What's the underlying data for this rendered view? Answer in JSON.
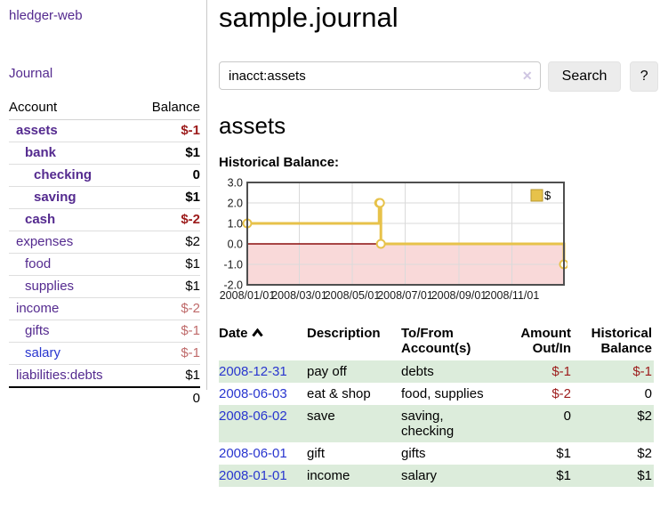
{
  "sidebar": {
    "app_title": "hledger-web",
    "nav_journal": "Journal",
    "accounts_table": {
      "headers": {
        "account": "Account",
        "balance": "Balance"
      },
      "rows": [
        {
          "name": "assets",
          "indent": 1,
          "bold": true,
          "balance": "$-1",
          "balance_style": "negative-strong",
          "link_style": "visited"
        },
        {
          "name": "bank",
          "indent": 2,
          "bold": true,
          "balance": "$1",
          "balance_style": "normal",
          "link_style": "visited"
        },
        {
          "name": "checking",
          "indent": 3,
          "bold": true,
          "balance": "0",
          "balance_style": "normal",
          "link_style": "visited"
        },
        {
          "name": "saving",
          "indent": 3,
          "bold": true,
          "balance": "$1",
          "balance_style": "normal",
          "link_style": "visited"
        },
        {
          "name": "cash",
          "indent": 2,
          "bold": true,
          "balance": "$-2",
          "balance_style": "negative-strong",
          "link_style": "visited"
        },
        {
          "name": "expenses",
          "indent": 1,
          "bold": false,
          "balance": "$2",
          "balance_style": "normal",
          "link_style": "visited"
        },
        {
          "name": "food",
          "indent": 2,
          "bold": false,
          "balance": "$1",
          "balance_style": "normal",
          "link_style": "visited"
        },
        {
          "name": "supplies",
          "indent": 2,
          "bold": false,
          "balance": "$1",
          "balance_style": "normal",
          "link_style": "visited"
        },
        {
          "name": "income",
          "indent": 1,
          "bold": false,
          "balance": "$-2",
          "balance_style": "negative-soft",
          "link_style": "visited"
        },
        {
          "name": "gifts",
          "indent": 2,
          "bold": false,
          "balance": "$-1",
          "balance_style": "negative-soft",
          "link_style": "visited"
        },
        {
          "name": "salary",
          "indent": 2,
          "bold": false,
          "balance": "$-1",
          "balance_style": "negative-soft",
          "link_style": "unvisited"
        },
        {
          "name": "liabilities:debts",
          "indent": 1,
          "bold": false,
          "balance": "$1",
          "balance_style": "normal",
          "link_style": "visited"
        }
      ],
      "total": "0"
    }
  },
  "header": {
    "title": "sample.journal"
  },
  "search": {
    "query": "inacct:assets",
    "clear_icon": "✕",
    "button_label": "Search",
    "help_label": "?"
  },
  "account_page": {
    "heading": "assets",
    "chart_label": "Historical Balance:"
  },
  "chart_data": {
    "type": "line",
    "step": true,
    "title": "Historical Balance:",
    "series": [
      {
        "name": "$",
        "color": "#e7c24a",
        "points": [
          [
            "2008-01-01",
            1
          ],
          [
            "2008-06-01",
            2
          ],
          [
            "2008-06-02",
            2
          ],
          [
            "2008-06-03",
            0
          ],
          [
            "2008-12-31",
            -1
          ]
        ]
      }
    ],
    "xrange": [
      "2008-01-01",
      "2008-12-31"
    ],
    "xticks": [
      {
        "date": "2008-01-01",
        "label": "2008/01/01"
      },
      {
        "date": "2008-03-01",
        "label": "2008/03/01"
      },
      {
        "date": "2008-05-01",
        "label": "2008/05/01"
      },
      {
        "date": "2008-07-01",
        "label": "2008/07/01"
      },
      {
        "date": "2008-09-01",
        "label": "2008/09/01"
      },
      {
        "date": "2008-11-01",
        "label": "2008/11/01"
      }
    ],
    "yticks": [
      "3.0",
      "2.0",
      "1.0",
      "0.0",
      "-1.0",
      "-2.0"
    ],
    "ylim": [
      -2,
      3
    ],
    "grid": true,
    "legend_position": "top-right",
    "legend_label": "$",
    "negative_region_color": "#f9d9d9",
    "zero_line_color": "#8c0d0d",
    "grid_color": "#dadada",
    "border_color": "#4f4f4f",
    "legend_marker_border": "#b6952e"
  },
  "register_table": {
    "headers": {
      "date": "Date",
      "sort_icon": "chevron-up",
      "description": "Description",
      "accounts": "To/From Account(s)",
      "amount": "Amount Out/In",
      "balance": "Historical Balance"
    },
    "rows": [
      {
        "date": "2008-12-31",
        "description": "pay off",
        "accounts": "debts",
        "amount": "$-1",
        "amount_negative": true,
        "balance": "$-1",
        "balance_negative": true
      },
      {
        "date": "2008-06-03",
        "description": "eat & shop",
        "accounts": "food, supplies",
        "amount": "$-2",
        "amount_negative": true,
        "balance": "0",
        "balance_negative": false
      },
      {
        "date": "2008-06-02",
        "description": "save",
        "accounts": "saving, checking",
        "amount": "0",
        "amount_negative": false,
        "balance": "$2",
        "balance_negative": false
      },
      {
        "date": "2008-06-01",
        "description": "gift",
        "accounts": "gifts",
        "amount": "$1",
        "amount_negative": false,
        "balance": "$2",
        "balance_negative": false
      },
      {
        "date": "2008-01-01",
        "description": "income",
        "accounts": "salary",
        "amount": "$1",
        "amount_negative": false,
        "balance": "$1",
        "balance_negative": false
      }
    ]
  },
  "colors": {
    "visited_link_purple": "#542a8f",
    "unvisited_link_blue": "#2936cf",
    "negative_strong_red": "#9c1b1b",
    "negative_soft_red": "#bf6a6a",
    "row_stripe_green": "#dcecdb",
    "series_gold": "#e7c24a",
    "negative_region_pink": "#f9d9d9",
    "zero_line_dark_red": "#8c0d0d"
  }
}
